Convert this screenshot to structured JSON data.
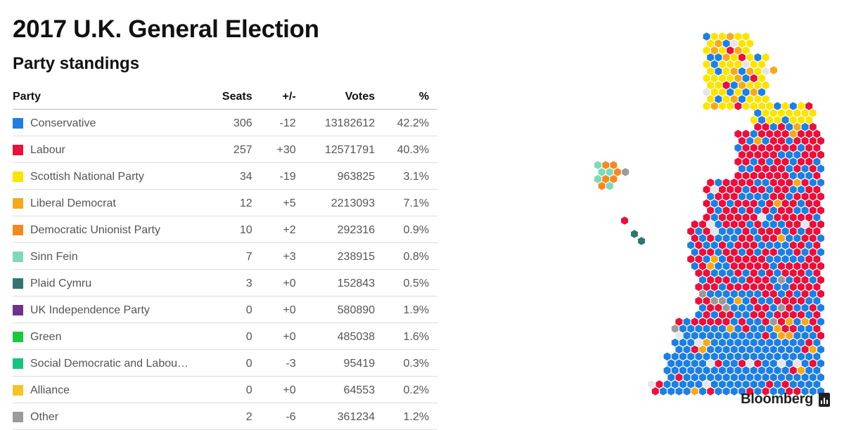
{
  "title": "2017 U.K. General Election",
  "subtitle": "Party standings",
  "brand": "Bloomberg",
  "table": {
    "headers": {
      "party": "Party",
      "seats": "Seats",
      "change": "+/-",
      "votes": "Votes",
      "pct": "%"
    }
  },
  "chart_data": {
    "type": "table",
    "columns": [
      "Party",
      "Seats",
      "+/-",
      "Votes",
      "%"
    ],
    "rows": [
      {
        "party": "Conservative",
        "color": "#1f7fe0",
        "seats": "306",
        "change": "-12",
        "votes": "13182612",
        "pct": "42.2%"
      },
      {
        "party": "Labour",
        "color": "#e8103c",
        "seats": "257",
        "change": "+30",
        "votes": "12571791",
        "pct": "40.3%"
      },
      {
        "party": "Scottish National Party",
        "color": "#fde300",
        "seats": "34",
        "change": "-19",
        "votes": "963825",
        "pct": "3.1%"
      },
      {
        "party": "Liberal Democrat",
        "color": "#f6a91d",
        "seats": "12",
        "change": "+5",
        "votes": "2213093",
        "pct": "7.1%"
      },
      {
        "party": "Democratic Unionist Party",
        "color": "#f28a24",
        "seats": "10",
        "change": "+2",
        "votes": "292316",
        "pct": "0.9%"
      },
      {
        "party": "Sinn Fein",
        "color": "#7fd9b6",
        "seats": "7",
        "change": "+3",
        "votes": "238915",
        "pct": "0.8%"
      },
      {
        "party": "Plaid Cymru",
        "color": "#317471",
        "seats": "3",
        "change": "+0",
        "votes": "152843",
        "pct": "0.5%"
      },
      {
        "party": "UK Independence Party",
        "color": "#70318e",
        "seats": "0",
        "change": "+0",
        "votes": "580890",
        "pct": "1.9%"
      },
      {
        "party": "Green",
        "color": "#19c93d",
        "seats": "0",
        "change": "+0",
        "votes": "485038",
        "pct": "1.6%"
      },
      {
        "party": "Social Democratic and Labou…",
        "color": "#16c27f",
        "seats": "0",
        "change": "-3",
        "votes": "95419",
        "pct": "0.3%"
      },
      {
        "party": "Alliance",
        "color": "#f5c42a",
        "seats": "0",
        "change": "+0",
        "votes": "64553",
        "pct": "0.2%"
      },
      {
        "party": "Other",
        "color": "#9b9b9b",
        "seats": "2",
        "change": "-6",
        "votes": "361234",
        "pct": "1.2%"
      }
    ],
    "map": {
      "type": "hex-cartogram",
      "grid_color": "#e6e6e6",
      "party_colors": {
        "Conservative": "#1f7fe0",
        "Labour": "#e8103c",
        "Scottish National Party": "#fde300",
        "Liberal Democrat": "#f6a91d",
        "Democratic Unionist Party": "#f28a24",
        "Sinn Fein": "#7fd9b6",
        "Plaid Cymru": "#317471",
        "Other": "#9b9b9b"
      }
    }
  }
}
